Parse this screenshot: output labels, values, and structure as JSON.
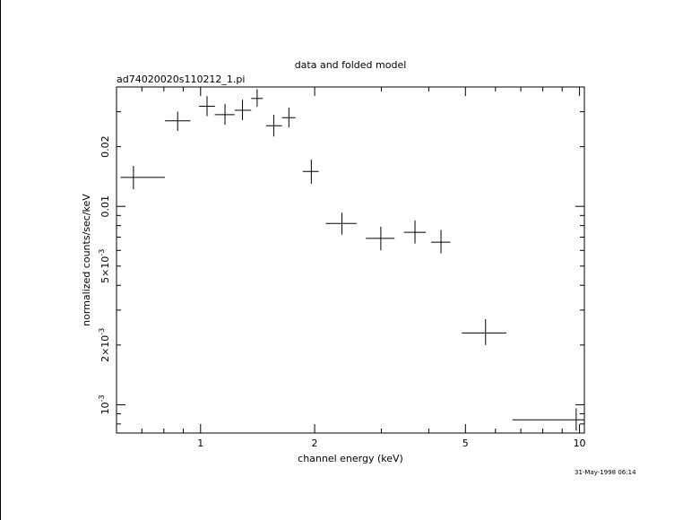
{
  "chart_data": {
    "type": "scatter",
    "title": "data and folded model",
    "subtitle": "ad74020020s110212_1.pi",
    "xlabel": "channel energy (keV)",
    "ylabel": "normalized counts/sec/keV",
    "x_scale": "log",
    "y_scale": "log",
    "xlim": [
      0.6,
      10.3
    ],
    "ylim": [
      0.00072,
      0.04
    ],
    "x_tick_labels": [
      {
        "value": 1,
        "label": "1"
      },
      {
        "value": 2,
        "label": "2"
      },
      {
        "value": 5,
        "label": "5"
      },
      {
        "value": 10,
        "label": "10"
      }
    ],
    "y_tick_labels": [
      {
        "value": 0.02,
        "label": "0.02"
      },
      {
        "value": 0.01,
        "label": "0.01"
      },
      {
        "value": 0.005,
        "label": "5×10",
        "sup": "-3"
      },
      {
        "value": 0.002,
        "label": "2×10",
        "sup": "-3"
      },
      {
        "value": 0.001,
        "label": "10",
        "sup": "-3"
      }
    ],
    "grid": false,
    "legend": "none",
    "series": [
      {
        "points": [
          {
            "x": 0.665,
            "xlo": 0.615,
            "xhi": 0.805,
            "y": 0.014,
            "ylo": 0.0122,
            "yhi": 0.016
          },
          {
            "x": 0.87,
            "xlo": 0.805,
            "xhi": 0.94,
            "y": 0.027,
            "ylo": 0.024,
            "yhi": 0.03
          },
          {
            "x": 1.04,
            "xlo": 0.99,
            "xhi": 1.09,
            "y": 0.032,
            "ylo": 0.0285,
            "yhi": 0.036
          },
          {
            "x": 1.16,
            "xlo": 1.09,
            "xhi": 1.23,
            "y": 0.029,
            "ylo": 0.0258,
            "yhi": 0.0328
          },
          {
            "x": 1.29,
            "xlo": 1.23,
            "xhi": 1.36,
            "y": 0.0305,
            "ylo": 0.0272,
            "yhi": 0.0345
          },
          {
            "x": 1.41,
            "xlo": 1.36,
            "xhi": 1.46,
            "y": 0.035,
            "ylo": 0.0318,
            "yhi": 0.039
          },
          {
            "x": 1.56,
            "xlo": 1.49,
            "xhi": 1.64,
            "y": 0.0255,
            "ylo": 0.0225,
            "yhi": 0.029
          },
          {
            "x": 1.71,
            "xlo": 1.64,
            "xhi": 1.78,
            "y": 0.028,
            "ylo": 0.025,
            "yhi": 0.0315
          },
          {
            "x": 1.96,
            "xlo": 1.86,
            "xhi": 2.05,
            "y": 0.015,
            "ylo": 0.013,
            "yhi": 0.0172
          },
          {
            "x": 2.36,
            "xlo": 2.14,
            "xhi": 2.58,
            "y": 0.0082,
            "ylo": 0.0072,
            "yhi": 0.0093
          },
          {
            "x": 2.99,
            "xlo": 2.73,
            "xhi": 3.25,
            "y": 0.0069,
            "ylo": 0.006,
            "yhi": 0.0079
          },
          {
            "x": 3.68,
            "xlo": 3.44,
            "xhi": 3.93,
            "y": 0.0074,
            "ylo": 0.0065,
            "yhi": 0.0085
          },
          {
            "x": 4.31,
            "xlo": 4.06,
            "xhi": 4.56,
            "y": 0.0066,
            "ylo": 0.0058,
            "yhi": 0.0076
          },
          {
            "x": 5.65,
            "xlo": 4.89,
            "xhi": 6.41,
            "y": 0.0023,
            "ylo": 0.002,
            "yhi": 0.0027
          },
          {
            "x": 9.8,
            "xlo": 6.65,
            "xhi": 10.3,
            "y": 0.00084,
            "ylo": 0.00074,
            "yhi": 0.00096
          }
        ]
      }
    ]
  },
  "stamp": "31-May-1998 06:14"
}
